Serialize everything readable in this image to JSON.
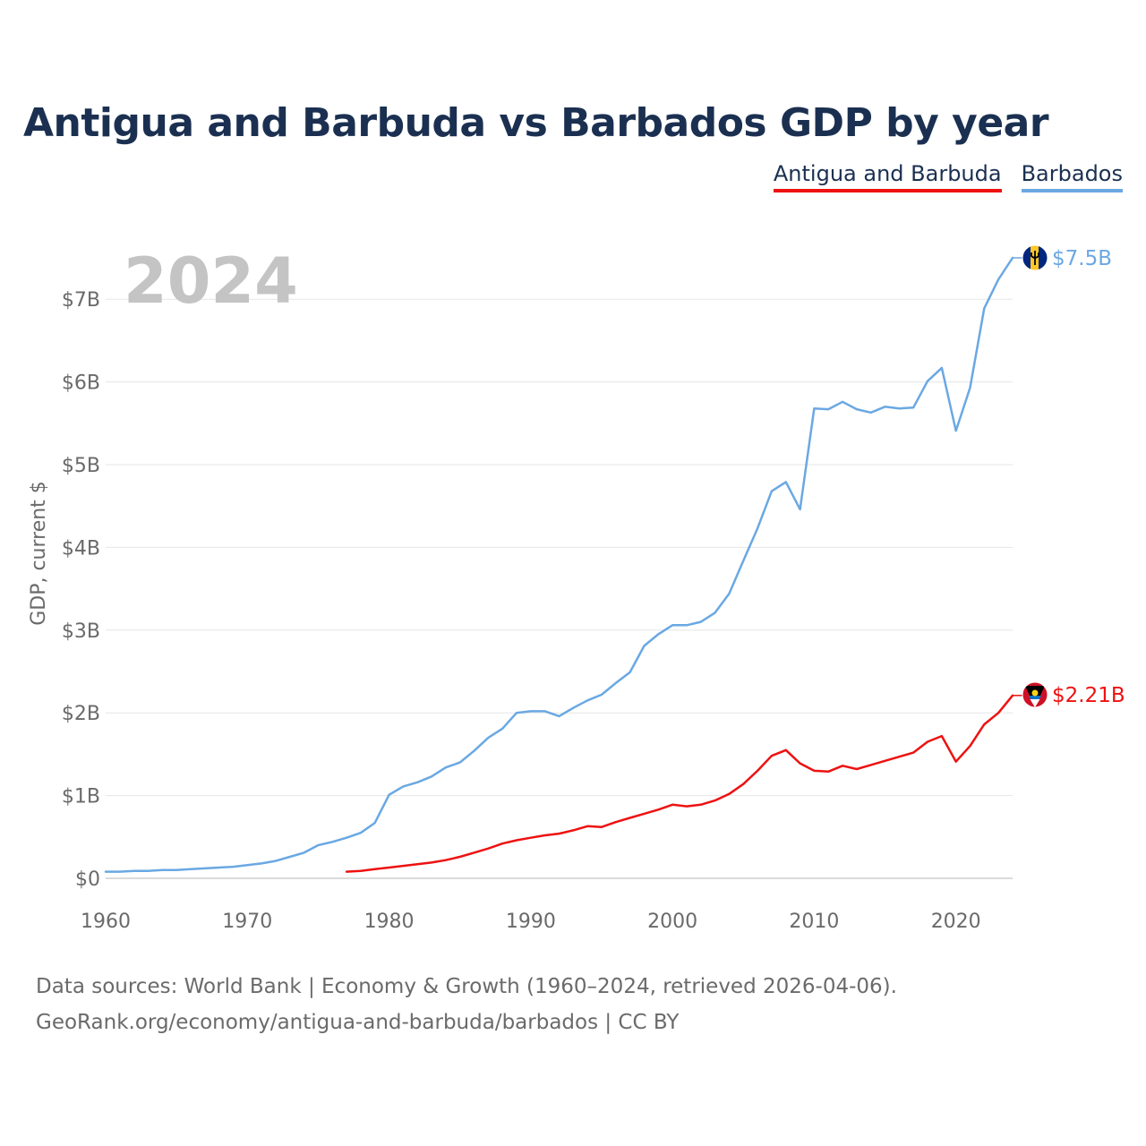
{
  "title": "Antigua and Barbuda vs Barbados GDP by year",
  "legend": [
    {
      "label": "Antigua and Barbuda",
      "color": "#ee1111"
    },
    {
      "label": "Barbados",
      "color": "#6aa8e3"
    }
  ],
  "year_watermark": "2024",
  "source_line1": "Data sources: World Bank | Economy & Growth (1960–2024, retrieved 2026-04-06).",
  "source_line2": "GeoRank.org/economy/antigua-and-barbuda/barbados | CC BY",
  "chart_data": {
    "type": "line",
    "title": "Antigua and Barbuda vs Barbados GDP by year",
    "xlabel": "",
    "ylabel": "GDP, current $",
    "xlim": [
      1960,
      2024
    ],
    "ylim": [
      0,
      7.5
    ],
    "x_ticks": [
      1960,
      1970,
      1980,
      1990,
      2000,
      2010,
      2020
    ],
    "x_tick_labels": [
      "1960",
      "1970",
      "1980",
      "1990",
      "2000",
      "2010",
      "2020"
    ],
    "y_ticks": [
      0,
      1,
      2,
      3,
      4,
      5,
      6,
      7
    ],
    "y_tick_labels": [
      "$0",
      "$1B",
      "$2B",
      "$3B",
      "$4B",
      "$5B",
      "$6B",
      "$7B"
    ],
    "grid": true,
    "series": [
      {
        "name": "Antigua and Barbuda",
        "color": "#ee1111",
        "flag_icon": "antigua-and-barbuda-flag-icon",
        "end_label": "$2.21B",
        "x": [
          1977,
          1978,
          1979,
          1980,
          1981,
          1982,
          1983,
          1984,
          1985,
          1986,
          1987,
          1988,
          1989,
          1990,
          1991,
          1992,
          1993,
          1994,
          1995,
          1996,
          1997,
          1998,
          1999,
          2000,
          2001,
          2002,
          2003,
          2004,
          2005,
          2006,
          2007,
          2008,
          2009,
          2010,
          2011,
          2012,
          2013,
          2014,
          2015,
          2016,
          2017,
          2018,
          2019,
          2020,
          2021,
          2022,
          2023,
          2024
        ],
        "values": [
          0.08,
          0.09,
          0.11,
          0.13,
          0.15,
          0.17,
          0.19,
          0.22,
          0.26,
          0.31,
          0.36,
          0.42,
          0.46,
          0.49,
          0.52,
          0.54,
          0.58,
          0.63,
          0.62,
          0.68,
          0.73,
          0.78,
          0.83,
          0.89,
          0.87,
          0.89,
          0.94,
          1.02,
          1.14,
          1.3,
          1.48,
          1.55,
          1.39,
          1.3,
          1.29,
          1.36,
          1.32,
          1.37,
          1.42,
          1.47,
          1.52,
          1.65,
          1.72,
          1.41,
          1.6,
          1.86,
          2.0,
          2.21
        ]
      },
      {
        "name": "Barbados",
        "color": "#6aa8e3",
        "flag_icon": "barbados-flag-icon",
        "end_label": "$7.5B",
        "x": [
          1960,
          1961,
          1962,
          1963,
          1964,
          1965,
          1966,
          1967,
          1968,
          1969,
          1970,
          1971,
          1972,
          1973,
          1974,
          1975,
          1976,
          1977,
          1978,
          1979,
          1980,
          1981,
          1982,
          1983,
          1984,
          1985,
          1986,
          1987,
          1988,
          1989,
          1990,
          1991,
          1992,
          1993,
          1994,
          1995,
          1996,
          1997,
          1998,
          1999,
          2000,
          2001,
          2002,
          2003,
          2004,
          2005,
          2006,
          2007,
          2008,
          2009,
          2010,
          2011,
          2012,
          2013,
          2014,
          2015,
          2016,
          2017,
          2018,
          2019,
          2020,
          2021,
          2022,
          2023,
          2024
        ],
        "values": [
          0.08,
          0.08,
          0.09,
          0.09,
          0.1,
          0.1,
          0.11,
          0.12,
          0.13,
          0.14,
          0.16,
          0.18,
          0.21,
          0.26,
          0.31,
          0.4,
          0.44,
          0.49,
          0.55,
          0.67,
          1.01,
          1.11,
          1.16,
          1.23,
          1.34,
          1.4,
          1.54,
          1.7,
          1.81,
          2.0,
          2.02,
          2.02,
          1.96,
          2.06,
          2.15,
          2.22,
          2.36,
          2.49,
          2.81,
          2.95,
          3.06,
          3.06,
          3.1,
          3.21,
          3.44,
          3.84,
          4.23,
          4.68,
          4.79,
          4.46,
          5.68,
          5.67,
          5.76,
          5.67,
          5.63,
          5.7,
          5.68,
          5.69,
          6.01,
          6.17,
          5.41,
          5.93,
          6.89,
          7.24,
          7.5
        ]
      }
    ]
  }
}
